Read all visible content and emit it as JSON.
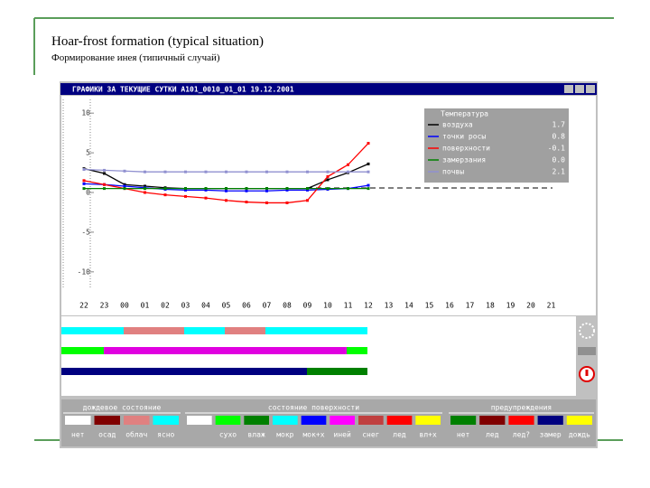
{
  "slide": {
    "title": "Hoar-frost formation (typical situation)",
    "subtitle": "Формирование инея (типичный случай)"
  },
  "window": {
    "title": "ГРАФИКИ ЗА ТЕКУЩИЕ СУТКИ A101_0010_01_01 19.12.2001"
  },
  "chart_data": {
    "type": "line",
    "categories": [
      "22",
      "23",
      "00",
      "01",
      "02",
      "03",
      "04",
      "05",
      "06",
      "07",
      "08",
      "09",
      "10",
      "11",
      "12",
      "13",
      "14",
      "15",
      "16",
      "17",
      "18",
      "19",
      "20",
      "21"
    ],
    "ylim": [
      -11.5,
      11.5
    ],
    "yticks": [
      10,
      5,
      0,
      -5,
      -10
    ],
    "legend_title": "Температура",
    "series": [
      {
        "name": "воздуха",
        "current": "1.7",
        "color": "#000000",
        "values": [
          3.0,
          2.4,
          1.0,
          0.8,
          0.6,
          0.5,
          0.5,
          0.5,
          0.5,
          0.5,
          0.5,
          0.5,
          1.6,
          2.5,
          3.6,
          null,
          null,
          null,
          null,
          null,
          null,
          null,
          null,
          null
        ]
      },
      {
        "name": "точки росы",
        "current": "0.8",
        "color": "#0000ff",
        "values": [
          1.1,
          1.0,
          0.8,
          0.6,
          0.4,
          0.3,
          0.3,
          0.2,
          0.2,
          0.2,
          0.3,
          0.3,
          0.4,
          0.5,
          0.9,
          null,
          null,
          null,
          null,
          null,
          null,
          null,
          null,
          null
        ]
      },
      {
        "name": "поверхности",
        "current": "-0.1",
        "color": "#ff0000",
        "values": [
          1.5,
          1.0,
          0.5,
          0.0,
          -0.3,
          -0.5,
          -0.7,
          -1.0,
          -1.2,
          -1.3,
          -1.3,
          -1.0,
          2.0,
          3.5,
          6.2,
          null,
          null,
          null,
          null,
          null,
          null,
          null,
          null,
          null
        ]
      },
      {
        "name": "замерзания",
        "current": "0.0",
        "color": "#008000",
        "values": [
          0.5,
          0.5,
          0.5,
          0.5,
          0.5,
          0.5,
          0.5,
          0.5,
          0.5,
          0.5,
          0.5,
          0.5,
          0.5,
          0.5,
          0.5,
          null,
          null,
          null,
          null,
          null,
          null,
          null,
          null,
          null
        ]
      },
      {
        "name": "почвы",
        "current": "2.1",
        "color": "#9090d0",
        "values": [
          2.9,
          2.8,
          2.7,
          2.6,
          2.6,
          2.6,
          2.6,
          2.6,
          2.6,
          2.6,
          2.6,
          2.6,
          2.6,
          2.6,
          2.6,
          null,
          null,
          null,
          null,
          null,
          null,
          null,
          null,
          null
        ]
      }
    ]
  },
  "status_legend": [
    {
      "title": "дождевое состояние",
      "items": [
        {
          "label": "нет",
          "color": "#ffffff"
        },
        {
          "label": "осад",
          "color": "#800000"
        },
        {
          "label": "облач",
          "color": "#e08080"
        },
        {
          "label": "ясно",
          "color": "#00ffff"
        }
      ]
    },
    {
      "title": "состояние поверхности",
      "items": [
        {
          "label": null,
          "color": "#ffffff"
        },
        {
          "label": "сухо",
          "color": "#00ff00"
        },
        {
          "label": "влаж",
          "color": "#008000"
        },
        {
          "label": "мокр",
          "color": "#00ffff"
        },
        {
          "label": "мок+х",
          "color": "#0000ff"
        },
        {
          "label": "иней",
          "color": "#ff00ff"
        },
        {
          "label": "снег",
          "color": "#c04040"
        },
        {
          "label": "лед",
          "color": "#ff0000"
        },
        {
          "label": "вл+х",
          "color": "#ffff00"
        }
      ]
    },
    {
      "title": "предупреждения",
      "items": [
        {
          "label": "нет",
          "color": "#008000"
        },
        {
          "label": "лед",
          "color": "#800000"
        },
        {
          "label": "лед?",
          "color": "#ff0000"
        },
        {
          "label": "замер",
          "color": "#000080"
        },
        {
          "label": "дождь",
          "color": "#ffff00"
        }
      ]
    }
  ]
}
